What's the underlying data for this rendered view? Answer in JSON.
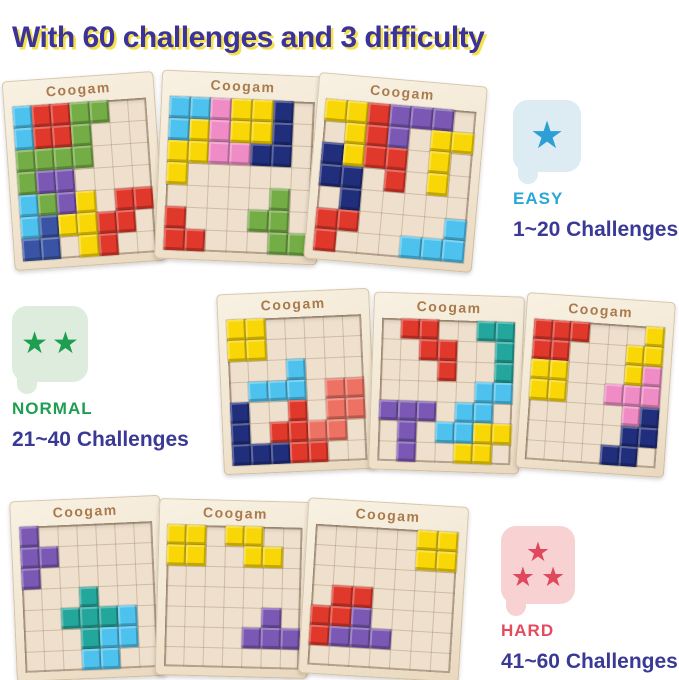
{
  "title": {
    "text": "With 60 challenges and 3 difficulty",
    "color": "#3b3399",
    "shadow_color": "#f5e14b"
  },
  "brand": {
    "logo": "Coogam",
    "logo_color": "#aa7a4c"
  },
  "palette": {
    "R": "#e0382b",
    "S": "#ed7263",
    "G": "#74ac45",
    "T": "#23a79d",
    "C": "#4ec2ee",
    "N": "#202e7c",
    "B": "#3a54a5",
    "Y": "#f9d606",
    "P": "#7a58b4",
    "K": "#ef8cc5"
  },
  "boards": [
    {
      "group": "easy",
      "grid": [
        "CRRGGEE",
        "CRRGEEE",
        "GGGGEEE",
        "GPPEEEE",
        "CGPYERR",
        "CBYYRRE",
        "BBEYREE"
      ]
    },
    {
      "group": "easy",
      "grid": [
        "CCKYYNE",
        "CYKYYNE",
        "YYKKNNE",
        "YEEEEEE",
        "EEEEEGE",
        "REEEGGE",
        "RREEEGG"
      ]
    },
    {
      "group": "easy",
      "grid": [
        "YYRPPPE",
        "EYRPEYY",
        "NYRREYE",
        "NNEREYE",
        "ENEEEEE",
        "RREEEEC",
        "REEECCC"
      ]
    },
    {
      "group": "normal",
      "grid": [
        "YYEEEEE",
        "YYEEEEE",
        "EEECEEE",
        "ECCCESS",
        "NEERESS",
        "NERRSSE",
        "NNNRREE"
      ]
    },
    {
      "group": "normal",
      "grid": [
        "ERREETT",
        "EERREET",
        "EEEREET",
        "EEEEECC",
        "PPPECCE",
        "EPECCYY",
        "EPEEYYE"
      ]
    },
    {
      "group": "normal",
      "grid": [
        "RRREEEY",
        "RREEEYY",
        "YYEEEYK",
        "YYEEKKK",
        "EEEEEKN",
        "EEEEENN",
        "EEEENNE"
      ]
    },
    {
      "group": "hard",
      "grid": [
        "PEEEEEE",
        "PPEEEEE",
        "PEEEEEE",
        "EEETEEE",
        "EETTTCE",
        "EEETCCE",
        "EEECCEE"
      ]
    },
    {
      "group": "hard",
      "grid": [
        "YYEYYEE",
        "YYEEYYE",
        "EEEEEEE",
        "EEEEEEE",
        "EEEEEPE",
        "EEEEPPP",
        "EEEEEEE"
      ]
    },
    {
      "group": "hard",
      "grid": [
        "EEEEEYY",
        "EEEEEYY",
        "EEEEEEE",
        "ERREEEE",
        "RRPEEEE",
        "RPPPEEE",
        "EEEEEEE"
      ]
    }
  ],
  "difficulties": [
    {
      "label": "EASY",
      "range": "1~20 Challenges",
      "stars": 1,
      "label_color": "#29a8d8",
      "star_color": "#2d9fd6",
      "bubble_color": "#dcecf2"
    },
    {
      "label": "NORMAL",
      "range": "21~40 Challenges",
      "stars": 2,
      "label_color": "#1e9e4f",
      "star_color": "#1e9e4f",
      "bubble_color": "#ddecdd"
    },
    {
      "label": "HARD",
      "range": "41~60 Challenges",
      "stars": 3,
      "label_color": "#e44b5e",
      "star_color": "#e0495d",
      "bubble_color": "#f8d2d2"
    }
  ],
  "range_text_color": "#3a3a96"
}
